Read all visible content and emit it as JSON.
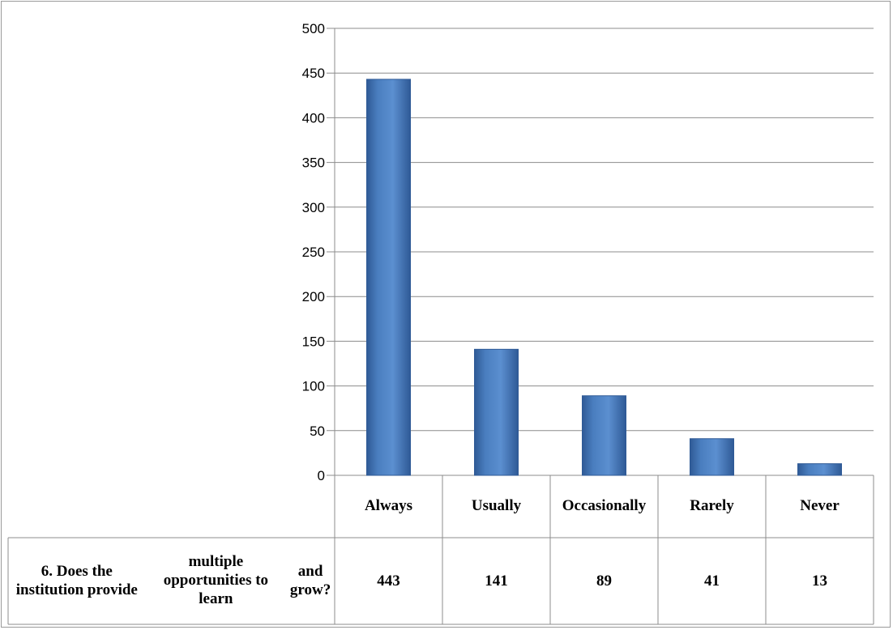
{
  "chart_data": {
    "type": "bar",
    "categories": [
      "Always",
      "Usually",
      "Occasion ally",
      "Rarely",
      "Never"
    ],
    "category_lines": [
      [
        "Always"
      ],
      [
        "Usually"
      ],
      [
        "Occasion",
        "ally"
      ],
      [
        "Rarely"
      ],
      [
        "Never"
      ]
    ],
    "series": [
      {
        "name": "6. Does the institution provide multiple opportunities to learn and grow?",
        "values": [
          443,
          141,
          89,
          41,
          13
        ]
      }
    ],
    "value_labels": [
      "443",
      "141",
      "89",
      "41",
      "13"
    ],
    "yticks": [
      0,
      50,
      100,
      150,
      200,
      250,
      300,
      350,
      400,
      450,
      500
    ],
    "ylim": [
      0,
      500
    ],
    "grid": true,
    "legend": "data-table",
    "colors": {
      "bar": "#4a7ebf",
      "bar_dark": "#2f5a96",
      "grid": "#8c8c8c",
      "table_border": "#8c8c8c"
    }
  },
  "table": {
    "row_header": "6. Does the institution provide multiple opportunities to learn and grow?",
    "row_header_lines": [
      "6. Does the institution provide",
      "multiple opportunities to learn",
      "and grow?"
    ]
  }
}
